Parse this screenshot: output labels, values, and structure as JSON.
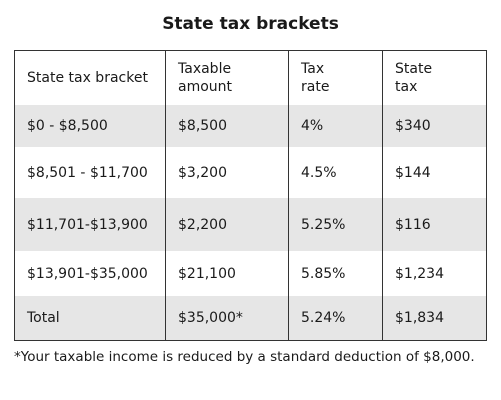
{
  "title": "State tax brackets",
  "table": {
    "headers": [
      [
        "State tax bracket"
      ],
      [
        "Taxable",
        "amount"
      ],
      [
        "Tax",
        "rate"
      ],
      [
        "State",
        "tax"
      ]
    ],
    "rows": [
      [
        "$0 - $8,500",
        "$8,500",
        "4%",
        "$340"
      ],
      [
        "$8,501 - $11,700",
        "$3,200",
        "4.5%",
        "$144"
      ],
      [
        "$11,701-$13,900",
        "$2,200",
        "5.25%",
        "$116"
      ],
      [
        "$13,901-$35,000",
        "$21,100",
        "5.85%",
        "$1,234"
      ],
      [
        "Total",
        "$35,000*",
        "5.24%",
        "$1,834"
      ]
    ]
  },
  "footnote": "*Your taxable income is reduced by a standard deduction of $8,000."
}
